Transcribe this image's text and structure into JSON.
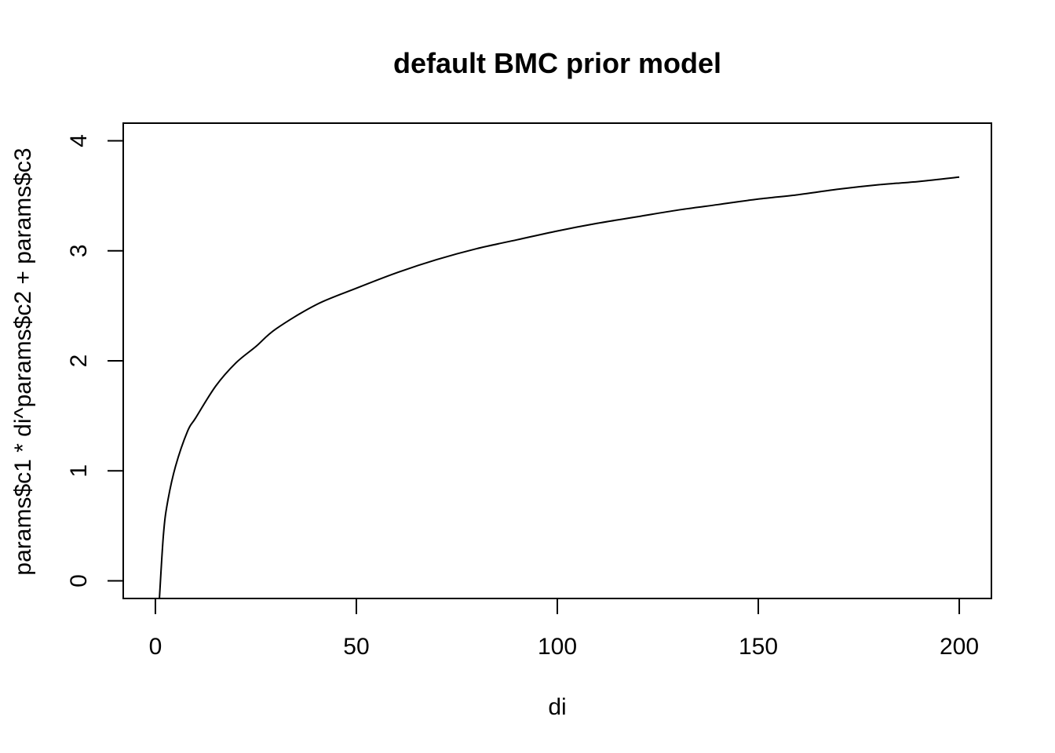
{
  "chart_data": {
    "type": "line",
    "title": "default BMC prior model",
    "xlabel": "di",
    "ylabel": "params$c1 * di^params$c2 + params$c3",
    "xlim": [
      -8,
      208
    ],
    "ylim": [
      -0.16,
      4.16
    ],
    "x_ticks": [
      0,
      50,
      100,
      150,
      200
    ],
    "x_tick_labels": [
      "0",
      "50",
      "100",
      "150",
      "200"
    ],
    "y_ticks": [
      0,
      1,
      2,
      3,
      4
    ],
    "y_tick_labels": [
      "0",
      "1",
      "2",
      "3",
      "4"
    ],
    "grid": false,
    "legend": "none",
    "series": [
      {
        "color": "#000000",
        "x": [
          1,
          2,
          3,
          5,
          8,
          10,
          15,
          20,
          25,
          30,
          40,
          50,
          60,
          70,
          80,
          90,
          100,
          110,
          120,
          130,
          140,
          150,
          160,
          170,
          180,
          190,
          200
        ],
        "y": [
          -0.16,
          0.42,
          0.71,
          1.04,
          1.36,
          1.48,
          1.77,
          1.98,
          2.13,
          2.29,
          2.51,
          2.66,
          2.8,
          2.92,
          3.02,
          3.1,
          3.18,
          3.25,
          3.31,
          3.37,
          3.42,
          3.47,
          3.51,
          3.56,
          3.6,
          3.63,
          3.67
        ]
      }
    ]
  }
}
